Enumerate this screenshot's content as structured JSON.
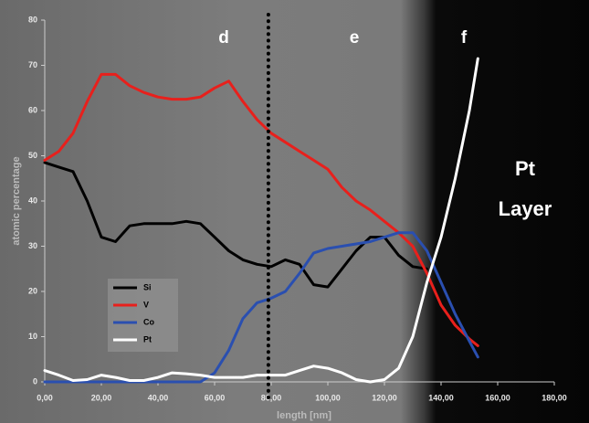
{
  "chart_data": {
    "type": "line",
    "x": [
      0,
      5,
      10,
      15,
      20,
      25,
      30,
      35,
      40,
      45,
      50,
      55,
      60,
      65,
      70,
      75,
      80,
      85,
      90,
      95,
      100,
      105,
      110,
      115,
      120,
      125,
      130,
      135,
      140,
      145,
      150,
      153
    ],
    "series": [
      {
        "name": "Si",
        "color": "#000000",
        "values": [
          48.5,
          47.5,
          46.5,
          40,
          32,
          31,
          34.5,
          35,
          35,
          35,
          35.5,
          35,
          32,
          29,
          27,
          26,
          25.5,
          27,
          26,
          21.5,
          21,
          25,
          29,
          32,
          32,
          28,
          25.5,
          25,
          null,
          null,
          null,
          null
        ]
      },
      {
        "name": "V",
        "color": "#e8201c",
        "values": [
          49,
          51,
          55,
          62,
          68,
          68,
          65.5,
          64,
          63,
          62.5,
          62.5,
          63,
          65,
          66.5,
          62,
          58,
          55,
          53,
          51,
          49,
          47,
          43,
          40,
          38,
          35.5,
          33,
          30,
          24,
          17,
          12.5,
          9.5,
          8
        ]
      },
      {
        "name": "Co",
        "color": "#2a4fb0",
        "values": [
          0,
          0,
          0,
          0,
          0,
          0,
          0,
          0,
          0,
          0,
          0,
          0,
          2,
          7,
          14,
          17.5,
          18.5,
          20,
          24,
          28.5,
          29.5,
          30,
          30.5,
          31,
          32,
          33,
          33,
          29,
          22,
          15,
          9,
          5.5
        ]
      },
      {
        "name": "Pt",
        "color": "#ffffff",
        "values": [
          2.5,
          1.5,
          0.3,
          0.5,
          1.5,
          1,
          0.3,
          0.3,
          1,
          2,
          1.8,
          1.5,
          1,
          1,
          1,
          1.5,
          1.5,
          1.5,
          2.5,
          3.5,
          3,
          2,
          0.5,
          0,
          0.5,
          3,
          10,
          22,
          32,
          45,
          60,
          71.5
        ]
      }
    ],
    "xlim": [
      0,
      180
    ],
    "xticks": [
      {
        "value": 0,
        "label": "0,00"
      },
      {
        "value": 20,
        "label": "20,00"
      },
      {
        "value": 40,
        "label": "40,00"
      },
      {
        "value": 60,
        "label": "60,00"
      },
      {
        "value": 80,
        "label": "80,00"
      },
      {
        "value": 100,
        "label": "100,00"
      },
      {
        "value": 120,
        "label": "120,00"
      },
      {
        "value": 140,
        "label": "140,00"
      },
      {
        "value": 160,
        "label": "160,00"
      },
      {
        "value": 180,
        "label": "180,00"
      }
    ],
    "ylim": [
      0,
      80
    ],
    "yticks": [
      0,
      10,
      20,
      30,
      40,
      50,
      60,
      70,
      80
    ],
    "xlabel": "length [nm]",
    "ylabel": "atomic percentage",
    "vline": 79,
    "annotations": [
      "d",
      "e",
      "f",
      "Pt",
      "Layer"
    ]
  }
}
